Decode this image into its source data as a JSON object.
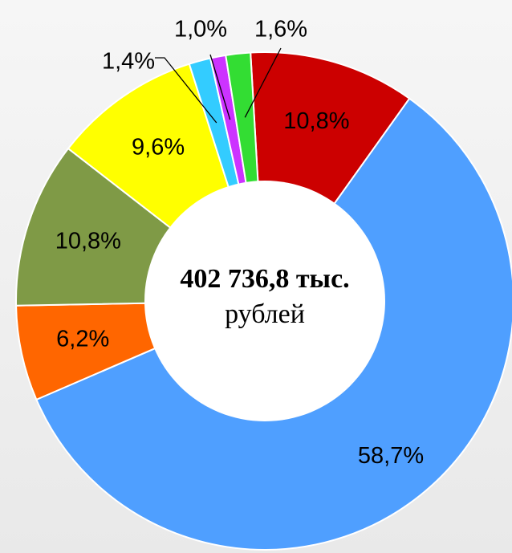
{
  "chart_data": {
    "type": "donut",
    "center_text": [
      "402 736,8 тыс.",
      "рублей"
    ],
    "categories": [
      null,
      null,
      null,
      null,
      null,
      null,
      null,
      null
    ],
    "values": [
      10.8,
      58.7,
      6.2,
      10.8,
      9.6,
      1.4,
      1.0,
      1.6
    ],
    "value_labels": [
      "10,8%",
      "58,7%",
      "6,2%",
      "10,8%",
      "9,6%",
      "1,4%",
      "1,0%",
      "1,6%"
    ],
    "colors": [
      "#cc0000",
      "#4f9fff",
      "#ff6600",
      "#7f9a46",
      "#ffff00",
      "#33ccff",
      "#cc33ff",
      "#33dd33"
    ]
  }
}
